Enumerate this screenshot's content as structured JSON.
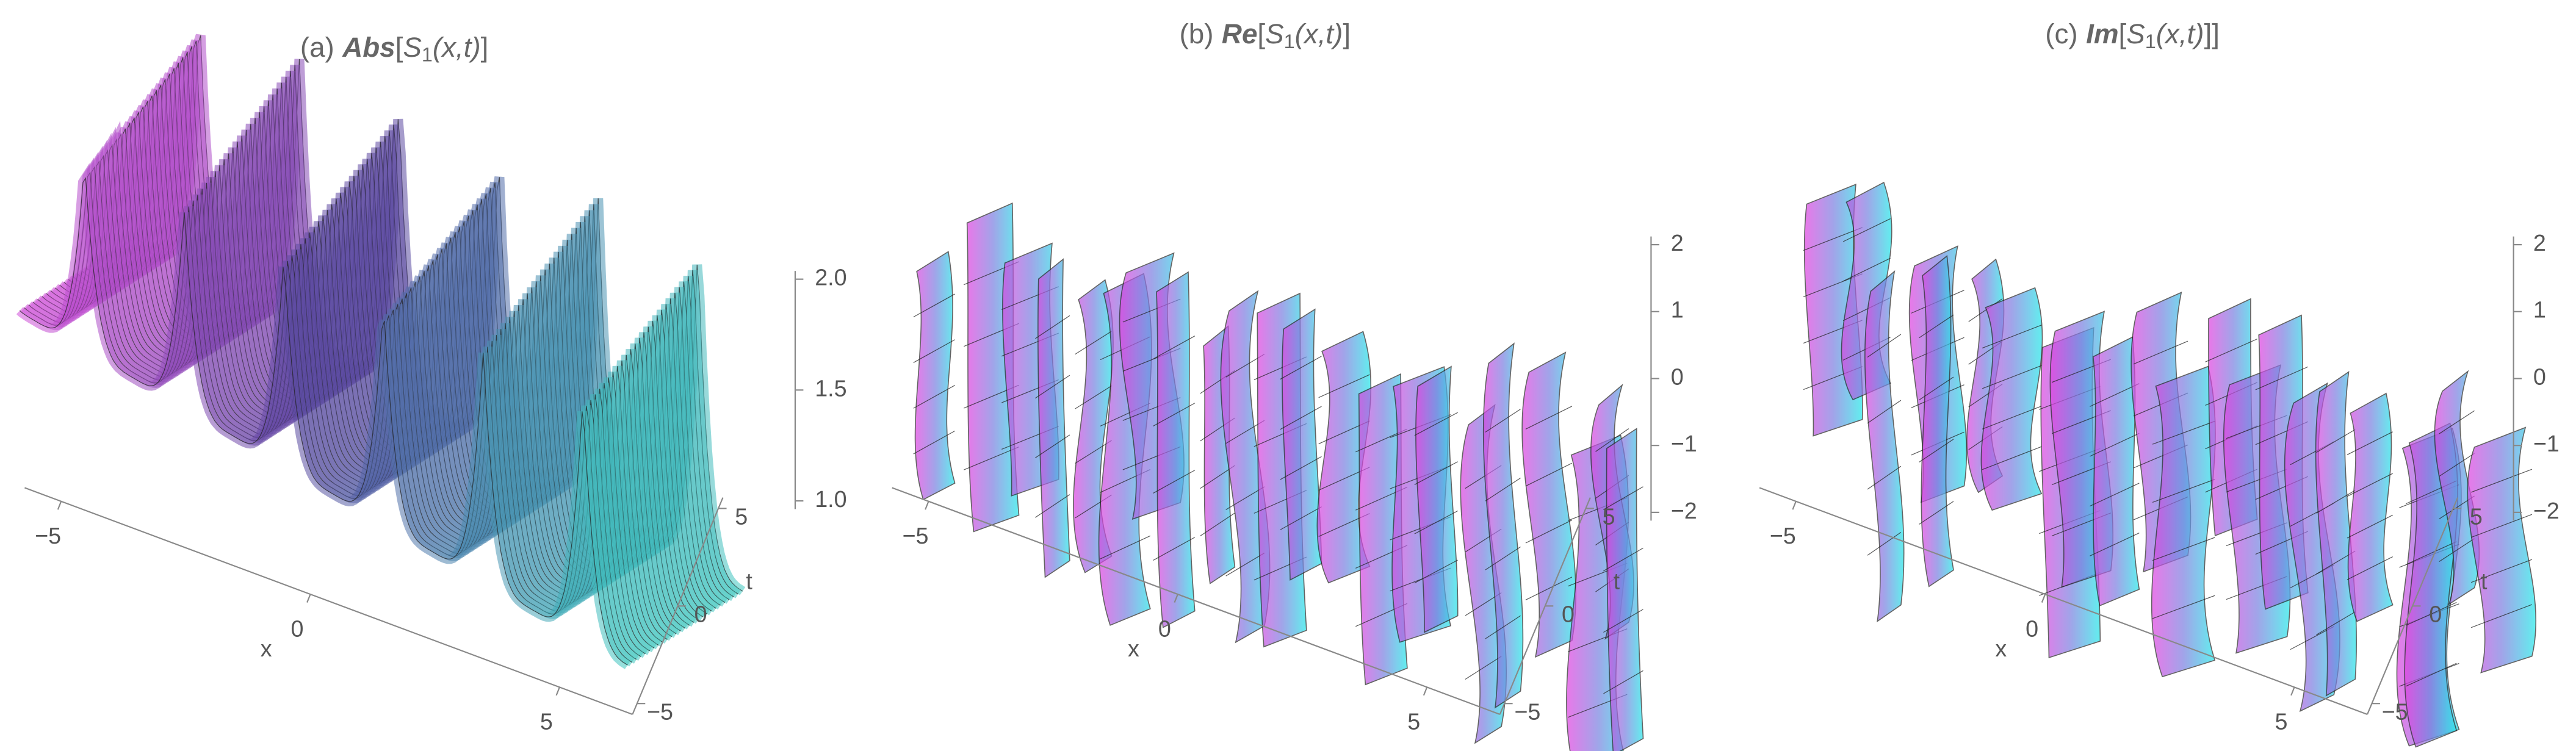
{
  "panels": [
    {
      "title": {
        "label": "(a)",
        "function": "Abs",
        "open": "[",
        "symbol": "S",
        "subscript": "1",
        "arguments": "(x,t)",
        "close": "]"
      },
      "x_label": "x",
      "t_label": "t",
      "x_ticks": [
        {
          "value": -5,
          "label": "−5"
        },
        0,
        5
      ],
      "t_ticks": [
        {
          "value": -5,
          "label": "−5"
        },
        0,
        5
      ],
      "z_ticks": [
        {
          "value": 1,
          "label": "1.0"
        },
        1.5,
        {
          "value": 2,
          "label": "2.0"
        }
      ]
    },
    {
      "title": {
        "label": "(b)",
        "function": "Re",
        "open": "[",
        "symbol": "S",
        "subscript": "1",
        "arguments": "(x,t)",
        "close": "]"
      },
      "x_label": "x",
      "t_label": "t",
      "x_ticks": [
        {
          "value": -5,
          "label": "−5"
        },
        0,
        5
      ],
      "t_ticks": [
        {
          "value": -5,
          "label": "−5"
        },
        0,
        5
      ],
      "z_ticks": [
        {
          "value": -2,
          "label": "−2"
        },
        {
          "value": -1,
          "label": "−1"
        },
        0,
        1,
        2
      ]
    },
    {
      "title": {
        "label": "(c)",
        "function": "Im",
        "open": "[",
        "symbol": "S",
        "subscript": "1",
        "arguments": "(x,t)",
        "close": "]]"
      },
      "x_label": "x",
      "t_label": "t",
      "x_ticks": [
        {
          "value": -5,
          "label": "−5"
        },
        0,
        5
      ],
      "t_ticks": [
        {
          "value": -5,
          "label": "−5"
        },
        0,
        5
      ],
      "z_ticks": [
        {
          "value": -2,
          "label": "−2"
        },
        {
          "value": -1,
          "label": "−1"
        },
        0,
        1,
        2
      ]
    }
  ]
}
